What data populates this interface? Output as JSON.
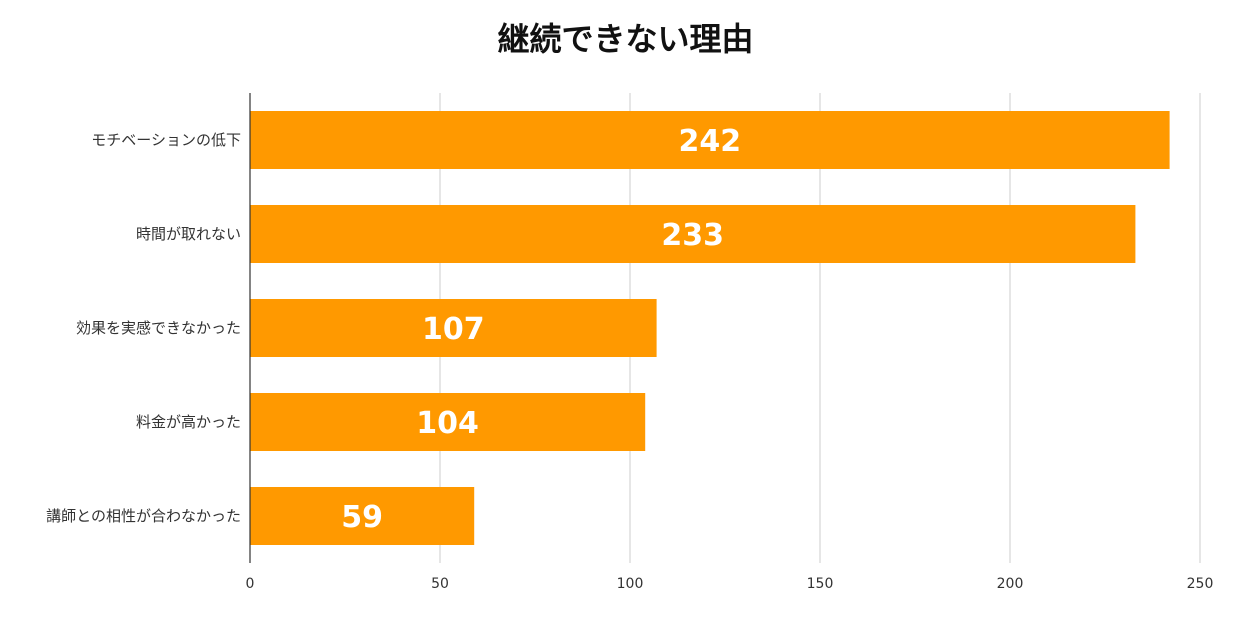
{
  "chart_data": {
    "type": "bar",
    "orientation": "horizontal",
    "title": "継続できない理由",
    "categories": [
      "モチベーションの低下",
      "時間が取れない",
      "効果を実感できなかった",
      "料金が高かった",
      "講師との相性が合わなかった"
    ],
    "values": [
      242,
      233,
      107,
      104,
      59
    ],
    "xlim": [
      0,
      250
    ],
    "xticks": [
      0,
      50,
      100,
      150,
      200,
      250
    ],
    "grid": true,
    "legend": "none",
    "colors": {
      "bar": "#FF9900",
      "grid": "#CCCCCC",
      "axis": "#333333",
      "value_label": "#FFFFFF"
    }
  }
}
